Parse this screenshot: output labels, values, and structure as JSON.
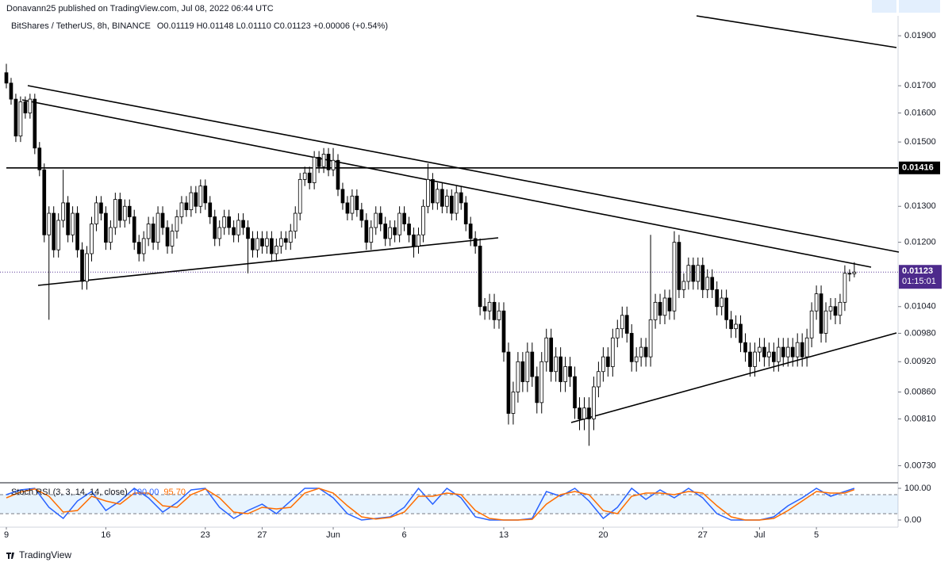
{
  "header": "Donavann25 published on TradingView.com, Jul 08, 2022 06:44 UTC",
  "footer": "TradingView",
  "chart_data": [
    {
      "type": "candlestick",
      "title": "BitShares / TetherUS, 8h, BINANCE",
      "subtitle": "O0.01119  H0.01148  L0.01110  C0.01123  +0.00006 (+0.54%)",
      "up_color": "#ffffff",
      "down_color": "#000000",
      "border_color": "#000000",
      "log": true,
      "xlim": [
        -1.34,
        187.9
      ],
      "ylim": [
        0.00704,
        0.01986
      ],
      "xticks": [
        {
          "value": 0,
          "label": "9"
        },
        {
          "value": 21,
          "label": "16"
        },
        {
          "value": 42,
          "label": "23"
        },
        {
          "value": 54,
          "label": "27"
        },
        {
          "value": 69,
          "label": "Jun"
        },
        {
          "value": 84,
          "label": "6"
        },
        {
          "value": 105,
          "label": "13"
        },
        {
          "value": 126,
          "label": "20"
        },
        {
          "value": 147,
          "label": "27"
        },
        {
          "value": 159,
          "label": "Jul"
        },
        {
          "value": 171,
          "label": "5"
        }
      ],
      "yticks": [
        {
          "value": 0.019,
          "label": "0.01900"
        },
        {
          "value": 0.017,
          "label": "0.01700"
        },
        {
          "value": 0.016,
          "label": "0.01600"
        },
        {
          "value": 0.015,
          "label": "0.01500"
        },
        {
          "value": 0.013,
          "label": "0.01300"
        },
        {
          "value": 0.012,
          "label": "0.01200"
        },
        {
          "value": 0.0104,
          "label": "0.01040"
        },
        {
          "value": 0.0098,
          "label": "0.00980"
        },
        {
          "value": 0.0092,
          "label": "0.00920"
        },
        {
          "value": 0.0086,
          "label": "0.00860"
        },
        {
          "value": 0.0081,
          "label": "0.00810"
        },
        {
          "value": 0.0073,
          "label": "0.00730"
        }
      ],
      "hline": {
        "value": 0.01416,
        "label": "0.01416"
      },
      "last_price": {
        "value": 0.01123,
        "label": "0.01123",
        "countdown": "01:15:01"
      },
      "high": [
        0.01785,
        0.0173,
        0.0167,
        0.0166,
        0.0166,
        0.0167,
        0.0167,
        0.015,
        0.0143,
        0.013,
        0.013,
        0.0128,
        0.0141,
        0.0133,
        0.013,
        0.013,
        0.012,
        0.0119,
        0.0127,
        0.0133,
        0.0133,
        0.013,
        0.0126,
        0.0134,
        0.0134,
        0.0132,
        0.0132,
        0.0129,
        0.0122,
        0.0123,
        0.0127,
        0.0127,
        0.013,
        0.013,
        0.0126,
        0.0125,
        0.0129,
        0.0133,
        0.0133,
        0.0136,
        0.0136,
        0.0138,
        0.0138,
        0.0133,
        0.0129,
        0.0126,
        0.0129,
        0.0129,
        0.0126,
        0.0128,
        0.0128,
        0.0126,
        0.0123,
        0.0123,
        0.0123,
        0.0123,
        0.0123,
        0.0121,
        0.0123,
        0.0123,
        0.0125,
        0.013,
        0.014,
        0.0142,
        0.0142,
        0.0147,
        0.0147,
        0.0148,
        0.0148,
        0.0148,
        0.0146,
        0.0137,
        0.0133,
        0.0135,
        0.0135,
        0.0131,
        0.0128,
        0.0126,
        0.013,
        0.013,
        0.0127,
        0.0126,
        0.0126,
        0.013,
        0.013,
        0.0127,
        0.0124,
        0.0124,
        0.0132,
        0.0143,
        0.014,
        0.0137,
        0.0137,
        0.0135,
        0.0135,
        0.0136,
        0.0136,
        0.0133,
        0.0127,
        0.0123,
        0.0121,
        0.0106,
        0.0107,
        0.0107,
        0.0105,
        0.0105,
        0.0096,
        0.0088,
        0.0094,
        0.0094,
        0.0096,
        0.0096,
        0.0091,
        0.0094,
        0.0099,
        0.0099,
        0.0095,
        0.0095,
        0.0093,
        0.0093,
        0.0091,
        0.0085,
        0.0085,
        0.0085,
        0.0089,
        0.0092,
        0.0095,
        0.0095,
        0.0099,
        0.0101,
        0.0104,
        0.0104,
        0.01,
        0.0095,
        0.0097,
        0.0097,
        0.0122,
        0.0107,
        0.0107,
        0.0108,
        0.0108,
        0.0123,
        0.0122,
        0.0112,
        0.0116,
        0.0116,
        0.0116,
        0.0116,
        0.0113,
        0.0113,
        0.011,
        0.0108,
        0.0108,
        0.0103,
        0.0102,
        0.0102,
        0.0098,
        0.0096,
        0.0096,
        0.0097,
        0.0097,
        0.0096,
        0.0096,
        0.0097,
        0.0097,
        0.0097,
        0.0097,
        0.0098,
        0.0098,
        0.0099,
        0.0105,
        0.0109,
        0.0109,
        0.0105,
        0.0106,
        0.0106,
        0.0107,
        0.0114,
        0.0113,
        0.01148
      ],
      "low": [
        0.0169,
        0.0163,
        0.015,
        0.015,
        0.0158,
        0.0158,
        0.0146,
        0.0139,
        0.012,
        0.0101,
        0.0116,
        0.0116,
        0.0124,
        0.012,
        0.012,
        0.0116,
        0.0108,
        0.0108,
        0.0115,
        0.0123,
        0.0126,
        0.0118,
        0.0118,
        0.0122,
        0.0124,
        0.0124,
        0.0125,
        0.0118,
        0.0115,
        0.0115,
        0.0119,
        0.0118,
        0.0118,
        0.0122,
        0.0117,
        0.0117,
        0.0121,
        0.0125,
        0.0127,
        0.0127,
        0.0128,
        0.0128,
        0.0129,
        0.0125,
        0.0119,
        0.0119,
        0.0122,
        0.0122,
        0.012,
        0.012,
        0.0122,
        0.0112,
        0.0116,
        0.0116,
        0.0117,
        0.0117,
        0.0115,
        0.0115,
        0.0117,
        0.0118,
        0.0118,
        0.0121,
        0.0126,
        0.0136,
        0.0135,
        0.0135,
        0.014,
        0.014,
        0.0139,
        0.0139,
        0.0133,
        0.0129,
        0.0126,
        0.0126,
        0.0127,
        0.0124,
        0.0118,
        0.0118,
        0.0122,
        0.0123,
        0.0119,
        0.0119,
        0.012,
        0.012,
        0.0123,
        0.012,
        0.0116,
        0.0117,
        0.012,
        0.0128,
        0.0129,
        0.0129,
        0.0128,
        0.0128,
        0.0126,
        0.0126,
        0.0129,
        0.0123,
        0.0119,
        0.0117,
        0.0102,
        0.0101,
        0.0101,
        0.0099,
        0.0099,
        0.0092,
        0.008,
        0.008,
        0.0084,
        0.0086,
        0.0086,
        0.0087,
        0.0082,
        0.0082,
        0.009,
        0.0088,
        0.0088,
        0.0086,
        0.0086,
        0.0087,
        0.0081,
        0.0079,
        0.0079,
        0.00763,
        0.0079,
        0.0085,
        0.0088,
        0.0089,
        0.0089,
        0.0095,
        0.0097,
        0.0096,
        0.009,
        0.009,
        0.0091,
        0.0091,
        0.0091,
        0.0099,
        0.01,
        0.01,
        0.0101,
        0.0101,
        0.0106,
        0.0106,
        0.0108,
        0.0108,
        0.0108,
        0.0106,
        0.0106,
        0.0106,
        0.0102,
        0.0102,
        0.0099,
        0.0097,
        0.0097,
        0.0094,
        0.0092,
        0.0089,
        0.0089,
        0.0092,
        0.0091,
        0.0091,
        0.009,
        0.009,
        0.0091,
        0.0091,
        0.0091,
        0.0091,
        0.0091,
        0.0091,
        0.0095,
        0.0101,
        0.0096,
        0.0096,
        0.0101,
        0.01,
        0.01,
        0.0103,
        0.011,
        0.0111
      ],
      "open": [
        0.0175,
        0.0171,
        0.0165,
        0.0152,
        0.0164,
        0.016,
        0.0165,
        0.0148,
        0.0141,
        0.0122,
        0.0128,
        0.0118,
        0.0126,
        0.0131,
        0.0122,
        0.0128,
        0.0118,
        0.011,
        0.0117,
        0.0125,
        0.0131,
        0.0128,
        0.012,
        0.0124,
        0.0132,
        0.0126,
        0.013,
        0.0127,
        0.012,
        0.0117,
        0.0121,
        0.0125,
        0.012,
        0.0128,
        0.0124,
        0.0119,
        0.0123,
        0.0127,
        0.0131,
        0.0129,
        0.0134,
        0.013,
        0.0136,
        0.0131,
        0.0127,
        0.0121,
        0.0124,
        0.0127,
        0.0124,
        0.0122,
        0.0126,
        0.0124,
        0.0121,
        0.0118,
        0.0121,
        0.0119,
        0.0121,
        0.0117,
        0.0119,
        0.0121,
        0.012,
        0.0123,
        0.0128,
        0.0138,
        0.014,
        0.0137,
        0.0145,
        0.0142,
        0.0146,
        0.0141,
        0.0144,
        0.0135,
        0.0131,
        0.0128,
        0.0133,
        0.0129,
        0.0126,
        0.012,
        0.0124,
        0.0128,
        0.0125,
        0.0121,
        0.0124,
        0.0122,
        0.0128,
        0.0125,
        0.0122,
        0.0119,
        0.0122,
        0.013,
        0.0138,
        0.0131,
        0.0135,
        0.013,
        0.0133,
        0.0128,
        0.0134,
        0.0131,
        0.0125,
        0.0121,
        0.0119,
        0.0104,
        0.0103,
        0.0105,
        0.0101,
        0.0103,
        0.0094,
        0.0082,
        0.0086,
        0.0092,
        0.0088,
        0.0094,
        0.0089,
        0.0084,
        0.0092,
        0.0097,
        0.009,
        0.0093,
        0.0088,
        0.0091,
        0.0089,
        0.0083,
        0.0081,
        0.0083,
        0.0081,
        0.0087,
        0.009,
        0.0093,
        0.0091,
        0.0097,
        0.0099,
        0.0102,
        0.0098,
        0.0092,
        0.0093,
        0.0095,
        0.0093,
        0.0101,
        0.0105,
        0.0102,
        0.0106,
        0.0103,
        0.012,
        0.0108,
        0.011,
        0.0114,
        0.011,
        0.0114,
        0.0108,
        0.0111,
        0.0108,
        0.0104,
        0.0106,
        0.0101,
        0.0099,
        0.01,
        0.0096,
        0.0094,
        0.0091,
        0.0094,
        0.0095,
        0.0093,
        0.0094,
        0.0092,
        0.0095,
        0.0093,
        0.0095,
        0.0093,
        0.0096,
        0.0093,
        0.0097,
        0.0103,
        0.0107,
        0.0098,
        0.0103,
        0.0104,
        0.0102,
        0.0105,
        0.0112,
        0.01119
      ],
      "close": [
        0.0171,
        0.0165,
        0.0152,
        0.0164,
        0.016,
        0.0165,
        0.0148,
        0.0141,
        0.0122,
        0.0128,
        0.0118,
        0.0126,
        0.0131,
        0.0122,
        0.0128,
        0.0118,
        0.011,
        0.0117,
        0.0125,
        0.0131,
        0.0128,
        0.012,
        0.0124,
        0.0132,
        0.0126,
        0.013,
        0.0127,
        0.012,
        0.0117,
        0.0121,
        0.0125,
        0.012,
        0.0128,
        0.0124,
        0.0119,
        0.0123,
        0.0127,
        0.0131,
        0.0129,
        0.0134,
        0.013,
        0.0136,
        0.0131,
        0.0127,
        0.0121,
        0.0124,
        0.0127,
        0.0124,
        0.0122,
        0.0126,
        0.0124,
        0.0121,
        0.0118,
        0.0121,
        0.0119,
        0.0121,
        0.0117,
        0.0119,
        0.0121,
        0.012,
        0.0123,
        0.0128,
        0.0138,
        0.014,
        0.0137,
        0.0145,
        0.0142,
        0.0146,
        0.0141,
        0.0144,
        0.0135,
        0.0131,
        0.0128,
        0.0133,
        0.0129,
        0.0126,
        0.012,
        0.0124,
        0.0128,
        0.0125,
        0.0121,
        0.0124,
        0.0122,
        0.0128,
        0.0125,
        0.0122,
        0.0119,
        0.0122,
        0.013,
        0.0138,
        0.0131,
        0.0135,
        0.013,
        0.0133,
        0.0128,
        0.0134,
        0.0131,
        0.0125,
        0.0121,
        0.0119,
        0.0104,
        0.0103,
        0.0105,
        0.0101,
        0.0103,
        0.0094,
        0.0082,
        0.0086,
        0.0092,
        0.0088,
        0.0094,
        0.0089,
        0.0084,
        0.0092,
        0.0097,
        0.009,
        0.0093,
        0.0088,
        0.0091,
        0.0089,
        0.0083,
        0.0081,
        0.0083,
        0.0081,
        0.0087,
        0.009,
        0.0093,
        0.0091,
        0.0097,
        0.0099,
        0.0102,
        0.0098,
        0.0092,
        0.0093,
        0.0095,
        0.0093,
        0.0101,
        0.0105,
        0.0102,
        0.0106,
        0.0103,
        0.012,
        0.0108,
        0.011,
        0.0114,
        0.011,
        0.0114,
        0.0108,
        0.0111,
        0.0108,
        0.0104,
        0.0106,
        0.0101,
        0.0099,
        0.01,
        0.0096,
        0.0094,
        0.0091,
        0.0094,
        0.0095,
        0.0093,
        0.0094,
        0.0092,
        0.0095,
        0.0093,
        0.0095,
        0.0093,
        0.0096,
        0.0093,
        0.0097,
        0.0103,
        0.0107,
        0.0098,
        0.0103,
        0.0104,
        0.0102,
        0.0105,
        0.0112,
        0.01119,
        0.01123
      ]
    },
    {
      "type": "line",
      "title": "Stoch RSI (3, 3, 14, 14, close)",
      "ylim": [
        -22.5,
        115
      ],
      "yticks": [
        {
          "value": 100,
          "label": "100.00"
        },
        {
          "value": 0,
          "label": "0.00"
        }
      ],
      "bands": [
        80,
        20
      ],
      "x": [
        0,
        3,
        6,
        9,
        12,
        15,
        18,
        21,
        24,
        27,
        30,
        33,
        36,
        39,
        42,
        45,
        48,
        51,
        54,
        57,
        60,
        63,
        66,
        69,
        72,
        75,
        78,
        81,
        84,
        87,
        90,
        93,
        96,
        99,
        102,
        105,
        108,
        111,
        114,
        117,
        120,
        123,
        126,
        129,
        132,
        135,
        138,
        141,
        144,
        147,
        150,
        153,
        156,
        159,
        162,
        165,
        168,
        171,
        174,
        177,
        179
      ],
      "series": [
        {
          "color": "#2962ff",
          "last_label": "100.00",
          "values": [
            80,
            95,
            100,
            40,
            5,
            60,
            90,
            30,
            60,
            100,
            70,
            25,
            55,
            95,
            100,
            40,
            5,
            30,
            50,
            20,
            60,
            100,
            100,
            70,
            20,
            0,
            5,
            10,
            40,
            100,
            50,
            100,
            70,
            10,
            0,
            0,
            0,
            5,
            90,
            75,
            100,
            60,
            5,
            40,
            100,
            65,
            95,
            70,
            100,
            70,
            20,
            0,
            0,
            0,
            10,
            45,
            70,
            100,
            75,
            90,
            100
          ]
        },
        {
          "color": "#ff6d00",
          "last_label": "95.70",
          "values": [
            70,
            88,
            98,
            75,
            25,
            30,
            75,
            60,
            50,
            85,
            85,
            45,
            40,
            80,
            98,
            70,
            25,
            20,
            40,
            35,
            40,
            85,
            100,
            85,
            45,
            10,
            3,
            8,
            25,
            75,
            75,
            85,
            80,
            30,
            5,
            0,
            0,
            2,
            50,
            80,
            90,
            80,
            30,
            20,
            75,
            85,
            85,
            80,
            90,
            85,
            45,
            10,
            0,
            0,
            5,
            30,
            60,
            90,
            85,
            85,
            95.7
          ]
        }
      ]
    }
  ]
}
